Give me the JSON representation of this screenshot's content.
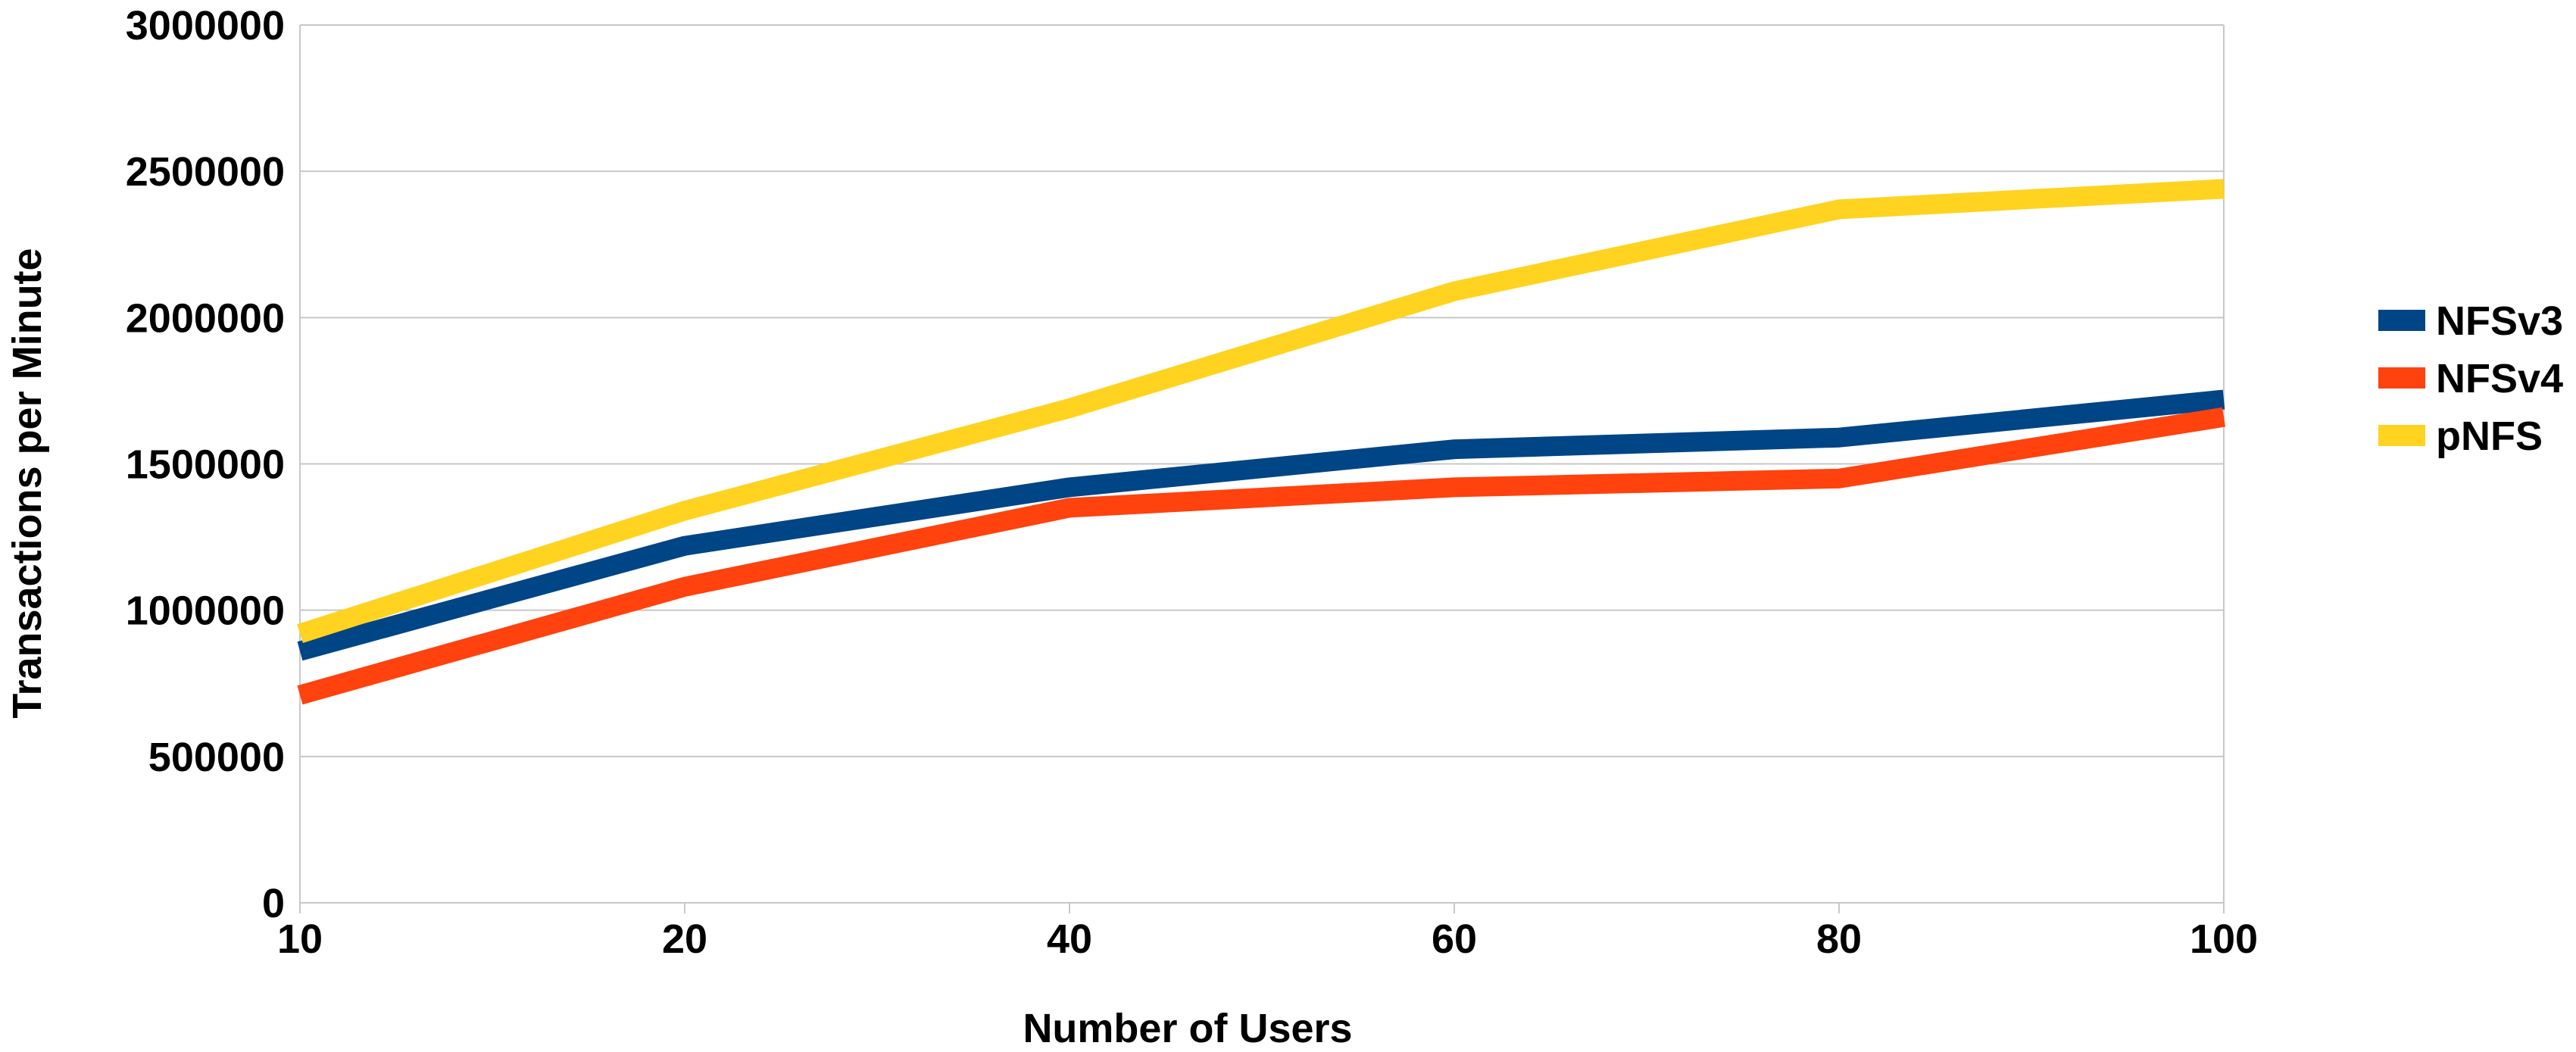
{
  "chart_data": {
    "type": "line",
    "x": [
      "10",
      "20",
      "40",
      "60",
      "80",
      "100"
    ],
    "xlabel": "Number of Users",
    "ylabel": "Transactions per Minute",
    "ylim": [
      0,
      3000000
    ],
    "yticks": [
      "0",
      "500000",
      "1000000",
      "1500000",
      "2000000",
      "2500000",
      "3000000"
    ],
    "grid": true,
    "legend_position": "right",
    "series": [
      {
        "name": "NFSv3",
        "color": "#004586",
        "values": [
          860000,
          1220000,
          1420000,
          1550000,
          1590000,
          1720000
        ]
      },
      {
        "name": "NFSv4",
        "color": "#ff420e",
        "values": [
          710000,
          1080000,
          1350000,
          1420000,
          1450000,
          1660000
        ]
      },
      {
        "name": "pNFS",
        "color": "#ffd320",
        "values": [
          920000,
          1340000,
          1690000,
          2090000,
          2370000,
          2440000
        ]
      }
    ]
  }
}
